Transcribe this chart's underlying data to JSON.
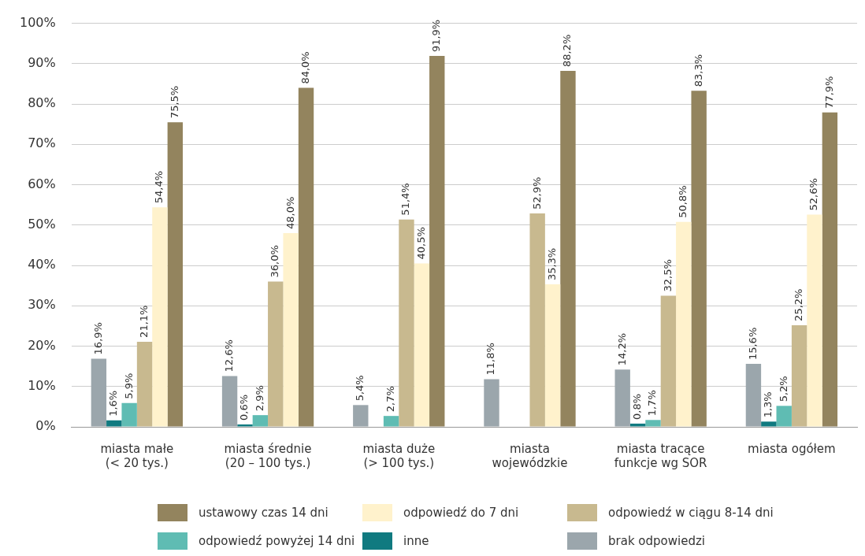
{
  "chart_data": {
    "type": "bar",
    "categories": [
      "miasta małe\n(< 20 tys.)",
      "miasta średnie\n(20 – 100 tys.)",
      "miasta duże\n(> 100 tys.)",
      "miasta\nwojewódzkie",
      "miasta tracące\nfunkcje wg SOR",
      "miasta ogółem"
    ],
    "series": [
      {
        "name": "brak odpowiedzi",
        "color": "#9ba6ac",
        "values": [
          16.9,
          12.6,
          5.4,
          11.8,
          14.2,
          15.6
        ],
        "value_labels": [
          "16,9%",
          "12,6%",
          "5,4%",
          "11,8%",
          "14,2%",
          "15,6%"
        ]
      },
      {
        "name": "inne",
        "color": "#107a80",
        "values": [
          1.6,
          0.6,
          null,
          null,
          0.8,
          1.3
        ],
        "value_labels": [
          "1,6%",
          "0,6%",
          null,
          null,
          "0,8%",
          "1,3%"
        ]
      },
      {
        "name": "odpowiedź powyżej 14 dni",
        "color": "#5fbcb3",
        "values": [
          5.9,
          2.9,
          2.7,
          null,
          1.7,
          5.2
        ],
        "value_labels": [
          "5,9%",
          "2,9%",
          "2,7%",
          null,
          "1,7%",
          "5,2%"
        ]
      },
      {
        "name": "odpowiedź w ciągu 8-14 dni",
        "color": "#c8b98f",
        "values": [
          21.1,
          36.0,
          51.4,
          52.9,
          32.5,
          25.2
        ],
        "value_labels": [
          "21,1%",
          "36,0%",
          "51,4%",
          "52,9%",
          "32,5%",
          "25,2%"
        ]
      },
      {
        "name": "odpowiedź do 7 dni",
        "color": "#fff2cc",
        "values": [
          54.4,
          48.0,
          40.5,
          35.3,
          50.8,
          52.6
        ],
        "value_labels": [
          "54,4%",
          "48,0%",
          "40,5%",
          "35,3%",
          "50,8%",
          "52,6%"
        ]
      },
      {
        "name": "ustawowy czas 14 dni",
        "color": "#93845e",
        "values": [
          75.5,
          84.0,
          91.9,
          88.2,
          83.3,
          77.9
        ],
        "value_labels": [
          "75,5%",
          "84,0%",
          "91,9%",
          "88,2%",
          "83,3%",
          "77,9%"
        ]
      }
    ],
    "ylim": [
      0,
      100
    ],
    "yticks": [
      {
        "value": 0,
        "label": "0%"
      },
      {
        "value": 10,
        "label": "10%"
      },
      {
        "value": 20,
        "label": "20%"
      },
      {
        "value": 30,
        "label": "30%"
      },
      {
        "value": 40,
        "label": "40%"
      },
      {
        "value": 50,
        "label": "50%"
      },
      {
        "value": 60,
        "label": "60%"
      },
      {
        "value": 70,
        "label": "70%"
      },
      {
        "value": 80,
        "label": "80%"
      },
      {
        "value": 90,
        "label": "90%"
      },
      {
        "value": 100,
        "label": "100%"
      }
    ],
    "grid": "y",
    "legend": "bottom"
  }
}
